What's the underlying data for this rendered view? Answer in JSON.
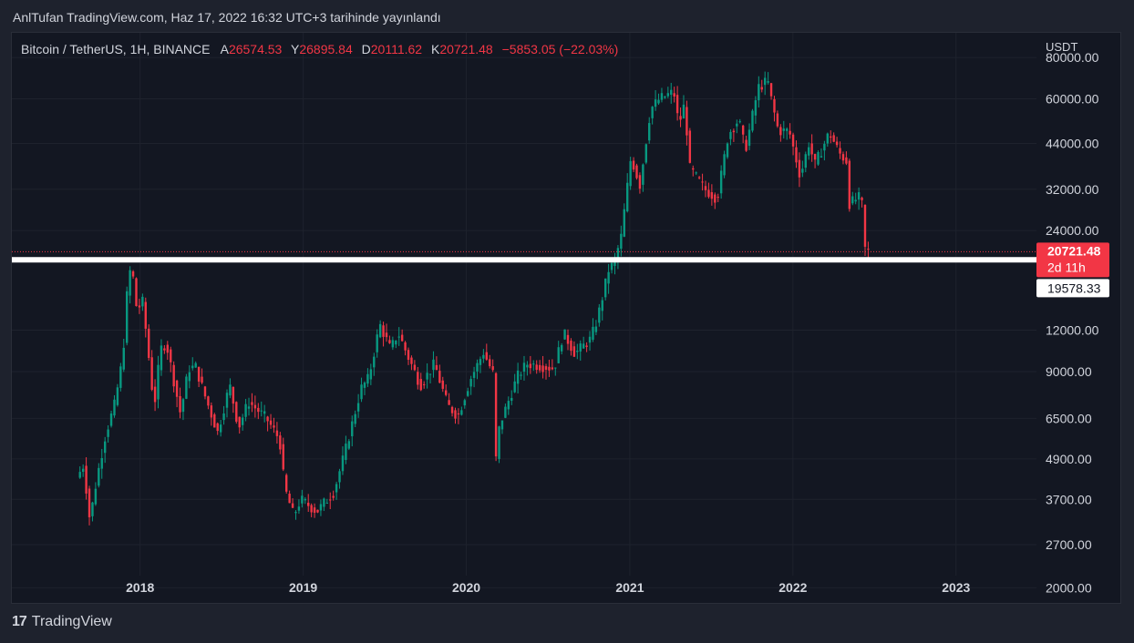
{
  "header": {
    "publish_line": "AnlTufan TradingView.com, Haz 17, 2022 16:32 UTC+3 tarihinde yayınlandı"
  },
  "legend": {
    "symbol": "Bitcoin / TetherUS, 1H, BINANCE",
    "open_label": "A",
    "open_value": "26574.53",
    "high_label": "Y",
    "high_value": "26895.84",
    "low_label": "D",
    "low_value": "20111.62",
    "close_label": "K",
    "close_value": "20721.48",
    "change": "−5853.05 (−22.03%)"
  },
  "price_axis": {
    "currency": "USDT",
    "ticks": [
      "80000.00",
      "60000.00",
      "44000.00",
      "32000.00",
      "24000.00",
      "12000.00",
      "9000.00",
      "6500.00",
      "4900.00",
      "3700.00",
      "2700.00",
      "2000.00"
    ]
  },
  "time_axis": {
    "ticks": [
      "2018",
      "2019",
      "2020",
      "2021",
      "2022",
      "2023"
    ]
  },
  "last_price": {
    "value": "20721.48",
    "countdown": "2d 11h",
    "color": "#f23645"
  },
  "hline": {
    "value": "19578.33",
    "color": "#ffffff"
  },
  "colors": {
    "up": "#089981",
    "down": "#f23645",
    "background": "#131722",
    "grid": "#1e222d",
    "text": "#d1d4dc"
  },
  "footer": {
    "brand": "TradingView",
    "logo_text": "17"
  },
  "chart_data": {
    "type": "candlestick",
    "title": "Bitcoin / TetherUS, 1H, BINANCE",
    "scale": "log",
    "ylim": [
      1800,
      95000
    ],
    "xlim": [
      "2017-03-20",
      "2023-06-30"
    ],
    "grid": true,
    "legend_position": "top-left",
    "horizontal_line": 19578.33,
    "anchors": [
      [
        "2017-08-17",
        4300
      ],
      [
        "2017-09-01",
        4700
      ],
      [
        "2017-09-15",
        3200
      ],
      [
        "2017-10-01",
        4300
      ],
      [
        "2017-10-20",
        5800
      ],
      [
        "2017-11-10",
        7200
      ],
      [
        "2017-11-28",
        10000
      ],
      [
        "2017-12-08",
        16000
      ],
      [
        "2017-12-17",
        19200
      ],
      [
        "2017-12-30",
        13500
      ],
      [
        "2018-01-10",
        15000
      ],
      [
        "2018-01-20",
        11500
      ],
      [
        "2018-02-06",
        7000
      ],
      [
        "2018-02-20",
        10500
      ],
      [
        "2018-03-05",
        11000
      ],
      [
        "2018-04-06",
        6700
      ],
      [
        "2018-04-24",
        9200
      ],
      [
        "2018-05-10",
        9300
      ],
      [
        "2018-06-01",
        7500
      ],
      [
        "2018-06-28",
        5900
      ],
      [
        "2018-07-25",
        8200
      ],
      [
        "2018-08-14",
        6100
      ],
      [
        "2018-09-05",
        7300
      ],
      [
        "2018-10-15",
        6500
      ],
      [
        "2018-11-14",
        5600
      ],
      [
        "2018-11-25",
        4000
      ],
      [
        "2018-12-15",
        3300
      ],
      [
        "2018-12-31",
        3700
      ],
      [
        "2019-02-05",
        3400
      ],
      [
        "2019-03-15",
        3900
      ],
      [
        "2019-04-10",
        5200
      ],
      [
        "2019-05-15",
        8000
      ],
      [
        "2019-06-01",
        8600
      ],
      [
        "2019-06-26",
        12500
      ],
      [
        "2019-07-20",
        10500
      ],
      [
        "2019-08-06",
        11800
      ],
      [
        "2019-09-01",
        9700
      ],
      [
        "2019-09-25",
        8200
      ],
      [
        "2019-10-26",
        9500
      ],
      [
        "2019-11-25",
        7100
      ],
      [
        "2019-12-18",
        6600
      ],
      [
        "2020-01-14",
        8500
      ],
      [
        "2020-02-13",
        10300
      ],
      [
        "2020-03-05",
        8900
      ],
      [
        "2020-03-12",
        4900
      ],
      [
        "2020-03-20",
        6200
      ],
      [
        "2020-04-29",
        8700
      ],
      [
        "2020-05-20",
        9500
      ],
      [
        "2020-06-15",
        9400
      ],
      [
        "2020-07-20",
        9200
      ],
      [
        "2020-08-10",
        11800
      ],
      [
        "2020-09-05",
        10200
      ],
      [
        "2020-10-10",
        11300
      ],
      [
        "2020-10-25",
        13000
      ],
      [
        "2020-11-20",
        18500
      ],
      [
        "2020-12-01",
        19000
      ],
      [
        "2020-12-17",
        23000
      ],
      [
        "2021-01-08",
        40000
      ],
      [
        "2021-01-28",
        33000
      ],
      [
        "2021-02-21",
        56000
      ],
      [
        "2021-03-13",
        60000
      ],
      [
        "2021-04-14",
        63000
      ],
      [
        "2021-04-25",
        50000
      ],
      [
        "2021-05-08",
        58000
      ],
      [
        "2021-05-20",
        37000
      ],
      [
        "2021-06-22",
        32000
      ],
      [
        "2021-07-20",
        30000
      ],
      [
        "2021-08-14",
        47000
      ],
      [
        "2021-09-06",
        52000
      ],
      [
        "2021-09-21",
        42000
      ],
      [
        "2021-10-20",
        65000
      ],
      [
        "2021-11-10",
        68000
      ],
      [
        "2021-11-20",
        58000
      ],
      [
        "2021-12-04",
        48000
      ],
      [
        "2021-12-28",
        48000
      ],
      [
        "2022-01-22",
        35000
      ],
      [
        "2022-02-10",
        44000
      ],
      [
        "2022-02-24",
        38000
      ],
      [
        "2022-03-28",
        47500
      ],
      [
        "2022-04-20",
        41000
      ],
      [
        "2022-05-05",
        39000
      ],
      [
        "2022-05-12",
        29000
      ],
      [
        "2022-06-08",
        30500
      ],
      [
        "2022-06-13",
        22500
      ],
      [
        "2022-06-17",
        20721
      ]
    ]
  }
}
